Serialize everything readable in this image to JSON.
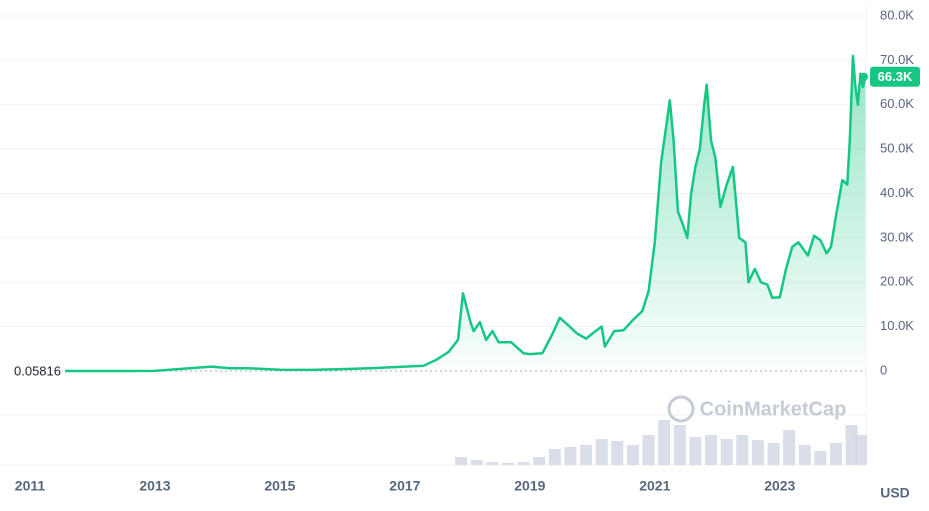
{
  "chart_data": {
    "type": "area",
    "x": [
      2011.56,
      2012.0,
      2013.0,
      2013.9,
      2014.2,
      2014.5,
      2015.0,
      2015.5,
      2016.0,
      2016.5,
      2017.0,
      2017.3,
      2017.5,
      2017.7,
      2017.85,
      2017.93,
      2018.05,
      2018.1,
      2018.2,
      2018.3,
      2018.4,
      2018.5,
      2018.7,
      2018.9,
      2019.0,
      2019.2,
      2019.35,
      2019.48,
      2019.6,
      2019.75,
      2019.9,
      2020.05,
      2020.15,
      2020.2,
      2020.35,
      2020.5,
      2020.65,
      2020.8,
      2020.9,
      2021.0,
      2021.1,
      2021.18,
      2021.24,
      2021.3,
      2021.37,
      2021.45,
      2021.52,
      2021.58,
      2021.65,
      2021.72,
      2021.79,
      2021.83,
      2021.9,
      2021.97,
      2022.05,
      2022.15,
      2022.25,
      2022.35,
      2022.45,
      2022.5,
      2022.6,
      2022.7,
      2022.8,
      2022.88,
      2023.0,
      2023.1,
      2023.2,
      2023.3,
      2023.45,
      2023.55,
      2023.65,
      2023.75,
      2023.82,
      2023.9,
      2024.0,
      2024.08,
      2024.12,
      2024.17,
      2024.21,
      2024.25,
      2024.29,
      2024.33,
      2024.37
    ],
    "values": [
      0.05816,
      5,
      13,
      1000,
      600,
      600,
      300,
      250,
      430,
      650,
      1000,
      1200,
      2500,
      4300,
      7000,
      17500,
      11000,
      9000,
      11000,
      7000,
      9000,
      6500,
      6500,
      4000,
      3800,
      4000,
      8000,
      12000,
      10500,
      8500,
      7300,
      9000,
      10000,
      5500,
      9000,
      9200,
      11500,
      13500,
      18000,
      29000,
      47000,
      55000,
      61000,
      52000,
      36000,
      33000,
      30000,
      40000,
      46000,
      50000,
      60000,
      64500,
      52000,
      48000,
      37000,
      42000,
      46000,
      30000,
      29000,
      20000,
      23000,
      20000,
      19500,
      16500,
      16600,
      23000,
      28000,
      29000,
      26000,
      30500,
      29500,
      26500,
      28000,
      35000,
      43000,
      42000,
      52000,
      71000,
      64000,
      60000,
      67000,
      64000,
      66300
    ],
    "color": "#16c784",
    "xlim": [
      2010.52,
      2024.38
    ],
    "xticks": [
      2011,
      2013,
      2015,
      2017,
      2019,
      2021,
      2023
    ],
    "ylim": [
      0,
      80000
    ],
    "yticks": [
      0,
      {
        "value": 10000,
        "label": "10.0K"
      },
      {
        "value": 20000,
        "label": "20.0K"
      },
      {
        "value": 30000,
        "label": "30.0K"
      },
      {
        "value": 40000,
        "label": "40.0K"
      },
      {
        "value": 50000,
        "label": "50.0K"
      },
      {
        "value": 60000,
        "label": "60.0K"
      },
      {
        "value": 70000,
        "label": "70.0K"
      },
      {
        "value": 80000,
        "label": "80.0K"
      }
    ],
    "grid": true,
    "start_price": 0.05816,
    "last_price": {
      "value": 66300,
      "label": "66.3K"
    },
    "currency": "USD",
    "watermark": "CoinMarketCap",
    "volume": {
      "x": [
        2017.9,
        2018.15,
        2018.4,
        2018.65,
        2018.9,
        2019.15,
        2019.4,
        2019.65,
        2019.9,
        2020.15,
        2020.4,
        2020.65,
        2020.9,
        2021.15,
        2021.4,
        2021.65,
        2021.9,
        2022.15,
        2022.4,
        2022.65,
        2022.9,
        2023.15,
        2023.4,
        2023.65,
        2023.9,
        2024.15,
        2024.3
      ],
      "values": [
        8,
        5,
        3,
        2,
        3,
        8,
        16,
        18,
        20,
        26,
        24,
        20,
        30,
        45,
        40,
        28,
        30,
        26,
        30,
        25,
        22,
        35,
        20,
        14,
        22,
        40,
        30
      ]
    }
  }
}
